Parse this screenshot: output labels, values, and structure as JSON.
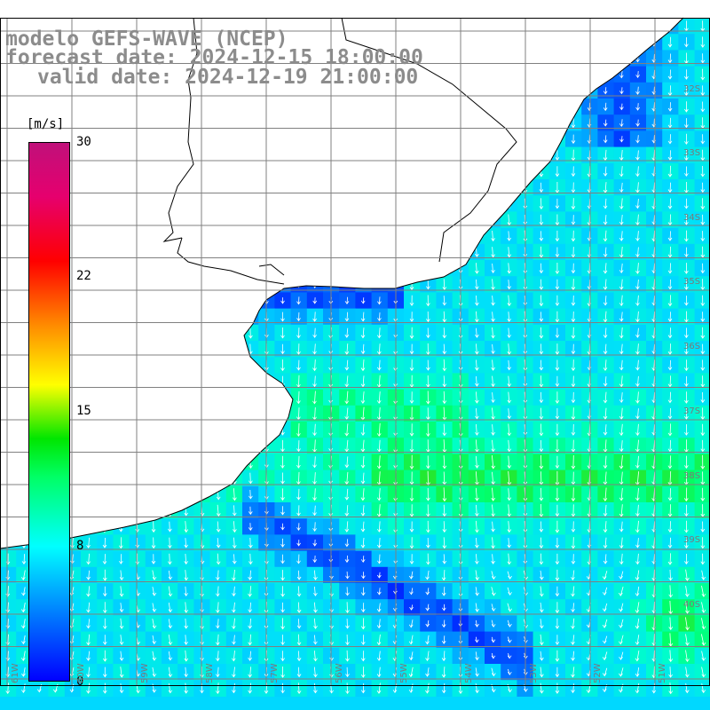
{
  "titles": {
    "line1": "modelo GEFS-WAVE (NCEP)",
    "line2": "forecast date: 2024-12-15 18:00:00",
    "line3": "valid date: 2024-12-19 21:00:00"
  },
  "colorbar": {
    "units": "[m/s]",
    "ticks": [
      "30",
      "22",
      "15",
      "8",
      "0"
    ],
    "colors": [
      "#0000ff",
      "#0078ff",
      "#00ffff",
      "#00ff64",
      "#00e600",
      "#ffff00",
      "#ff8c00",
      "#ff0000",
      "#e6006e"
    ]
  },
  "grid": {
    "lat_labels": [
      "32S",
      "33S",
      "34S",
      "35S",
      "36S",
      "37S",
      "38S",
      "39S",
      "40S"
    ],
    "lon_labels": [
      "61W",
      "60W",
      "59W",
      "58W",
      "57W",
      "56W",
      "55W",
      "54W",
      "53W",
      "52W",
      "51W"
    ]
  },
  "map": {
    "field": "wind speed with direction arrows",
    "land_color": "#ffffff",
    "coast_color": "#000000",
    "grid_color": "#808080",
    "arrow_color": "#ffffff"
  }
}
